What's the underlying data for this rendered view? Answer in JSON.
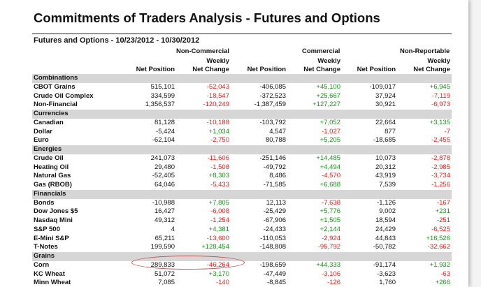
{
  "title": "Commitments of Traders Analysis - Futures and Options",
  "subtitle": "Futures and Options - 10/23/2012 - 10/30/2012",
  "groups": {
    "non_commercial": "Non-Commercial",
    "commercial": "Commercial",
    "non_reportable": "Non-Reportable"
  },
  "columns": {
    "net_position": "Net Position",
    "weekly_net_change_l1": "Weekly",
    "weekly_net_change_l2": "Net Change"
  },
  "colors": {
    "negative": "#e8231f",
    "positive": "#149a14",
    "category_band": "#d6d6d6",
    "highlight_oval": "#c0504d"
  },
  "rows": [
    {
      "type": "category",
      "name": "Combinations"
    },
    {
      "type": "data",
      "name": "CBOT Grains",
      "v": [
        "515,101",
        "-52,043",
        "-406,085",
        "+45,100",
        "-109,017",
        "+6,945"
      ]
    },
    {
      "type": "data",
      "name": "Crude Oil Complex",
      "v": [
        "334,599",
        "-18,547",
        "-372,523",
        "+25,667",
        "37,924",
        "-7,119"
      ]
    },
    {
      "type": "data",
      "name": "Non-Financial",
      "v": [
        "1,356,537",
        "-120,249",
        "-1,387,459",
        "+127,227",
        "30,921",
        "-6,973"
      ]
    },
    {
      "type": "category",
      "name": "Currencies"
    },
    {
      "type": "data",
      "name": "Canadian",
      "v": [
        "81,128",
        "-10,188",
        "-103,792",
        "+7,052",
        "22,664",
        "+3,135"
      ]
    },
    {
      "type": "data",
      "name": "Dollar",
      "v": [
        "-5,424",
        "+1,034",
        "4,547",
        "-1,027",
        "877",
        "-7"
      ]
    },
    {
      "type": "data",
      "name": "Euro",
      "v": [
        "-62,104",
        "-2,750",
        "80,788",
        "+5,205",
        "-18,685",
        "-2,455"
      ]
    },
    {
      "type": "category",
      "name": "Energies"
    },
    {
      "type": "data",
      "name": "Crude Oil",
      "v": [
        "241,073",
        "-11,606",
        "-251,146",
        "+14,485",
        "10,073",
        "-2,878"
      ]
    },
    {
      "type": "data",
      "name": "Heating Oil",
      "v": [
        "29,480",
        "-1,508",
        "-49,792",
        "+4,494",
        "20,312",
        "-2,985"
      ]
    },
    {
      "type": "data",
      "name": "Natural Gas",
      "v": [
        "-52,405",
        "+8,303",
        "8,486",
        "-4,570",
        "43,919",
        "-3,734"
      ]
    },
    {
      "type": "data",
      "name": "Gas (RBOB)",
      "v": [
        "64,046",
        "-5,433",
        "-71,585",
        "+6,688",
        "7,539",
        "-1,256"
      ]
    },
    {
      "type": "category",
      "name": "Financials"
    },
    {
      "type": "data",
      "name": "Bonds",
      "v": [
        "-10,988",
        "+7,805",
        "12,113",
        "-7,638",
        "-1,126",
        "-167"
      ]
    },
    {
      "type": "data",
      "name": "Dow Jones $5",
      "v": [
        "16,427",
        "-6,008",
        "-25,429",
        "+5,776",
        "9,002",
        "+231"
      ]
    },
    {
      "type": "data",
      "name": "Nasdaq Mini",
      "v": [
        "49,312",
        "-1,254",
        "-67,906",
        "+1,505",
        "18,594",
        "-251"
      ]
    },
    {
      "type": "data",
      "name": "S&P 500",
      "v": [
        "4",
        "+4,381",
        "-24,433",
        "+2,144",
        "24,429",
        "-6,525"
      ]
    },
    {
      "type": "data",
      "name": "E-Mini S&P",
      "v": [
        "65,211",
        "-13,600",
        "-110,053",
        "-2,924",
        "44,843",
        "+16,526"
      ]
    },
    {
      "type": "data",
      "name": "T-Notes",
      "v": [
        "199,590",
        "+128,454",
        "-148,808",
        "-95,792",
        "-50,782",
        "-32,662"
      ]
    },
    {
      "type": "category",
      "name": "Grains"
    },
    {
      "type": "data",
      "name": "Corn",
      "v": [
        "289,833",
        "-46,264",
        "-198,659",
        "+44,333",
        "-91,174",
        "+1,932"
      ]
    },
    {
      "type": "data",
      "name": "KC Wheat",
      "v": [
        "51,072",
        "+3,170",
        "-47,449",
        "-3,106",
        "-3,623",
        "-63"
      ]
    },
    {
      "type": "data",
      "name": "Minn Wheat",
      "v": [
        "7,085",
        "-140",
        "-8,845",
        "-126",
        "1,760",
        "+266"
      ]
    }
  ]
}
